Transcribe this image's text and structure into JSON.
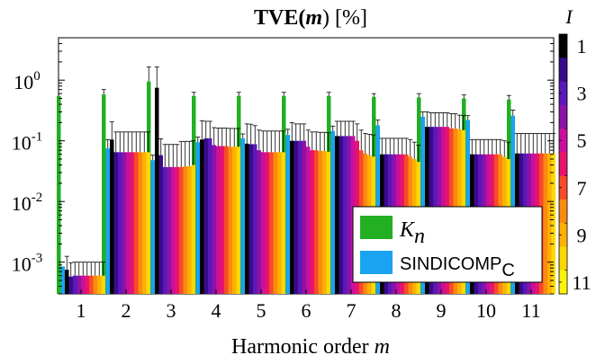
{
  "chart_data": {
    "type": "bar",
    "title_parts": [
      "TVE(",
      "m",
      ") [%]"
    ],
    "xlabel_parts": [
      "Harmonic order  ",
      "m"
    ],
    "ylabel": "",
    "y_scale": "log",
    "ylim": [
      0.0003,
      5
    ],
    "y_ticks": [
      {
        "value": 1,
        "base": "10",
        "exp": "0"
      },
      {
        "value": 0.1,
        "base": "10",
        "exp": "-1"
      },
      {
        "value": 0.01,
        "base": "10",
        "exp": "-2"
      },
      {
        "value": 0.001,
        "base": "10",
        "exp": "-3"
      }
    ],
    "categories": [
      "1",
      "2",
      "3",
      "4",
      "5",
      "6",
      "7",
      "8",
      "9",
      "10",
      "11"
    ],
    "series": [
      {
        "name": "K",
        "name_sub": "n",
        "color": "#22b022",
        "values": [
          0.55,
          0.58,
          0.95,
          0.55,
          0.55,
          0.55,
          0.55,
          0.53,
          0.52,
          0.5,
          0.48
        ],
        "errors": [
          0,
          0.12,
          0.7,
          0.08,
          0.08,
          0.08,
          0.08,
          0.07,
          0.08,
          0.07,
          0.08
        ]
      },
      {
        "name": "SINDICOMP",
        "name_sub": "C",
        "color": "#1aa3f0",
        "values": [
          0.00085,
          0.075,
          0.048,
          0.095,
          0.11,
          0.125,
          0.145,
          0.18,
          0.25,
          0.22,
          0.26
        ],
        "errors": [
          0,
          0.03,
          0.01,
          0.02,
          0.02,
          0.03,
          0.03,
          0.04,
          0.05,
          0.04,
          0.06
        ]
      },
      {
        "name": "I = 1",
        "color": "#000000",
        "values": [
          0.00075,
          0.105,
          0.75,
          0.105,
          0.09,
          0.1,
          0.12,
          0.06,
          0.17,
          0.06,
          0.062
        ],
        "errors": [
          0.0005,
          0.1,
          0.9,
          0.11,
          0.1,
          0.1,
          0.09,
          0.05,
          0.13,
          0.045,
          0.07
        ]
      },
      {
        "name": "I = 2",
        "color": "#3a0a8c",
        "values": [
          0.00058,
          0.065,
          0.058,
          0.11,
          0.088,
          0.1,
          0.12,
          0.06,
          0.17,
          0.06,
          0.062
        ],
        "errors": [
          0.0004,
          0.075,
          0.05,
          0.1,
          0.1,
          0.09,
          0.09,
          0.05,
          0.12,
          0.045,
          0.07
        ]
      },
      {
        "name": "I = 3",
        "color": "#5a18b8",
        "values": [
          0.0006,
          0.065,
          0.037,
          0.11,
          0.088,
          0.1,
          0.12,
          0.06,
          0.17,
          0.06,
          0.062
        ],
        "errors": [
          0.0004,
          0.075,
          0.05,
          0.1,
          0.09,
          0.09,
          0.09,
          0.05,
          0.12,
          0.045,
          0.07
        ]
      },
      {
        "name": "I = 4",
        "color": "#8c12a8",
        "values": [
          0.0006,
          0.065,
          0.037,
          0.085,
          0.07,
          0.1,
          0.12,
          0.06,
          0.17,
          0.06,
          0.062
        ],
        "errors": [
          0.0004,
          0.075,
          0.05,
          0.08,
          0.08,
          0.09,
          0.09,
          0.05,
          0.12,
          0.045,
          0.07
        ]
      },
      {
        "name": "I = 5",
        "color": "#c8109c",
        "values": [
          0.0006,
          0.065,
          0.037,
          0.082,
          0.065,
          0.08,
          0.12,
          0.06,
          0.17,
          0.06,
          0.062
        ],
        "errors": [
          0.0004,
          0.075,
          0.05,
          0.08,
          0.08,
          0.07,
          0.09,
          0.05,
          0.12,
          0.045,
          0.07
        ]
      },
      {
        "name": "I = 6",
        "color": "#e8146c",
        "values": [
          0.0006,
          0.065,
          0.037,
          0.082,
          0.065,
          0.07,
          0.1,
          0.06,
          0.17,
          0.06,
          0.062
        ],
        "errors": [
          0.0004,
          0.075,
          0.05,
          0.08,
          0.08,
          0.07,
          0.09,
          0.05,
          0.12,
          0.045,
          0.07
        ]
      },
      {
        "name": "I = 7",
        "color": "#f84a28",
        "values": [
          0.0006,
          0.065,
          0.037,
          0.082,
          0.065,
          0.07,
          0.07,
          0.06,
          0.16,
          0.06,
          0.062
        ],
        "errors": [
          0.0004,
          0.075,
          0.06,
          0.08,
          0.08,
          0.07,
          0.08,
          0.05,
          0.12,
          0.045,
          0.07
        ]
      },
      {
        "name": "I = 8",
        "color": "#fb8a10",
        "values": [
          0.0006,
          0.065,
          0.038,
          0.08,
          0.065,
          0.068,
          0.062,
          0.055,
          0.16,
          0.06,
          0.062
        ],
        "errors": [
          0.0004,
          0.075,
          0.06,
          0.08,
          0.08,
          0.07,
          0.07,
          0.05,
          0.12,
          0.045,
          0.07
        ]
      },
      {
        "name": "I = 9",
        "color": "#fcb000",
        "values": [
          0.0006,
          0.065,
          0.038,
          0.08,
          0.065,
          0.068,
          0.058,
          0.05,
          0.155,
          0.055,
          0.062
        ],
        "errors": [
          0.0004,
          0.075,
          0.06,
          0.08,
          0.08,
          0.07,
          0.07,
          0.045,
          0.11,
          0.045,
          0.07
        ]
      },
      {
        "name": "I = 10",
        "color": "#fcd800",
        "values": [
          0.0006,
          0.065,
          0.04,
          0.08,
          0.065,
          0.066,
          0.055,
          0.045,
          0.15,
          0.05,
          0.062
        ],
        "errors": [
          0.0004,
          0.075,
          0.06,
          0.08,
          0.08,
          0.07,
          0.07,
          0.04,
          0.11,
          0.045,
          0.07
        ]
      }
    ],
    "legend": {
      "placement": "lower-right",
      "entries": [
        {
          "name": "K",
          "sub": "n",
          "color": "#22b022"
        },
        {
          "name": "SINDICOMP",
          "sub": "C",
          "color": "#1aa3f0"
        }
      ]
    },
    "colorbar": {
      "label": "I",
      "tick_labels": [
        "1",
        "3",
        "5",
        "7",
        "9",
        "11"
      ],
      "colors": [
        "#000000",
        "#3a0a8c",
        "#5a18b8",
        "#8c12a8",
        "#c8109c",
        "#e8146c",
        "#f84a28",
        "#fb8a10",
        "#fcb000",
        "#fcd800",
        "#fdf20a"
      ]
    }
  }
}
